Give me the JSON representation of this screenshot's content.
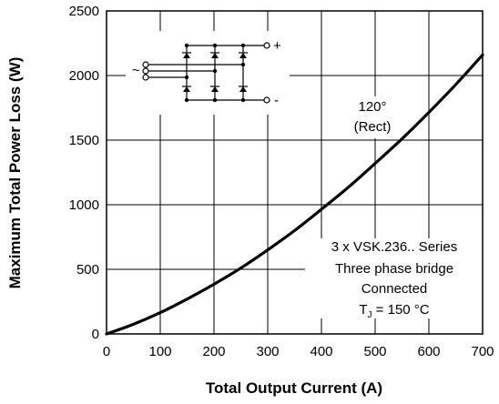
{
  "chart_data": {
    "type": "line",
    "title": "",
    "xlabel": "Total Output Current (A)",
    "ylabel": "Maximum Total Power Loss (W)",
    "xlim": [
      0,
      700
    ],
    "ylim": [
      0,
      2500
    ],
    "x_ticks": [
      0,
      100,
      200,
      300,
      400,
      500,
      600,
      700
    ],
    "y_ticks": [
      0,
      500,
      1000,
      1500,
      2000,
      2500
    ],
    "grid": true,
    "series": [
      {
        "x": [
          0,
          50,
          100,
          150,
          200,
          250,
          300,
          350,
          400,
          450,
          500,
          550,
          600,
          650,
          700
        ],
        "y": [
          0,
          75,
          165,
          270,
          385,
          510,
          650,
          800,
          965,
          1135,
          1320,
          1510,
          1715,
          1930,
          2160
        ]
      }
    ],
    "annotations": {
      "curve_label_line1": "120°",
      "curve_label_line2": "(Rect)",
      "device_line1": "3 x VSK.236.. Series",
      "device_line2": "Three phase bridge",
      "device_line3": "Connected",
      "tj_prefix": "T",
      "tj_sub": "J",
      "tj_suffix": " = 150 °C"
    },
    "circuit": {
      "plus": "+",
      "minus": "-",
      "ac": "~"
    }
  }
}
